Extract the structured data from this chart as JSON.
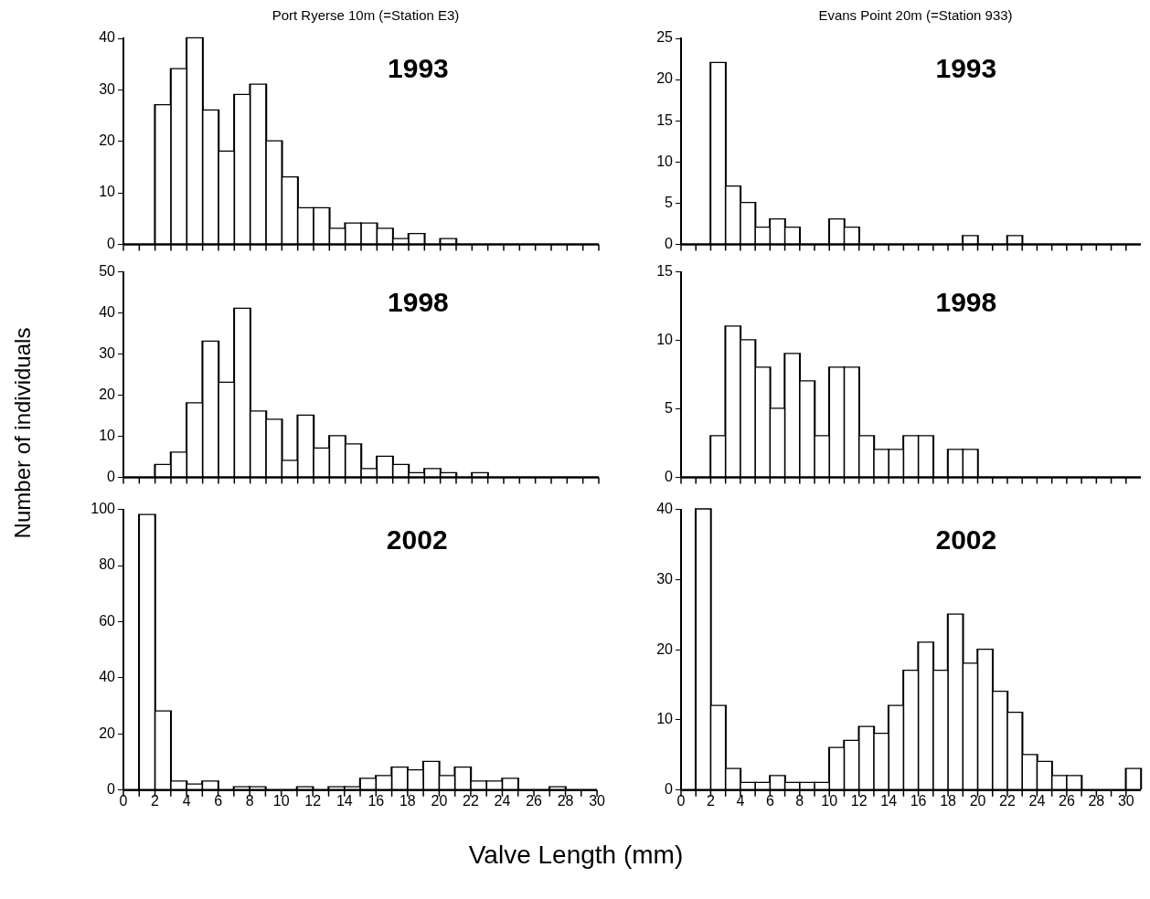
{
  "chart_data": [
    {
      "type": "histogram",
      "title": "Port Ryerse 10m (=Station E3)",
      "annotations": [
        "1993"
      ],
      "color": "#ffffff",
      "tick_labels": "y",
      "grid": false,
      "legend": false,
      "bins": [
        0,
        1,
        2,
        3,
        4,
        5,
        6,
        7,
        8,
        9,
        10,
        11,
        12,
        13,
        14,
        15,
        16,
        17,
        18,
        19,
        20,
        21,
        22,
        23,
        24,
        25,
        26,
        27,
        28,
        29,
        30
      ],
      "values": [
        0,
        0,
        27,
        34,
        40,
        26,
        18,
        29,
        31,
        20,
        13,
        7,
        7,
        3,
        4,
        4,
        3,
        1,
        2,
        0,
        1,
        0,
        0,
        0,
        0,
        0,
        0,
        0,
        0,
        0
      ],
      "xlim": [
        0,
        30
      ],
      "xticks": [
        0,
        {
          "value": 1,
          "label": null
        },
        2,
        {
          "value": 3,
          "label": null
        },
        4,
        {
          "value": 5,
          "label": null
        },
        6,
        {
          "value": 7,
          "label": null
        },
        8,
        {
          "value": 9,
          "label": null
        },
        10,
        {
          "value": 11,
          "label": null
        },
        12,
        {
          "value": 13,
          "label": null
        },
        14,
        {
          "value": 15,
          "label": null
        },
        16,
        {
          "value": 17,
          "label": null
        },
        18,
        {
          "value": 19,
          "label": null
        },
        20,
        {
          "value": 21,
          "label": null
        },
        22,
        {
          "value": 23,
          "label": null
        },
        24,
        {
          "value": 25,
          "label": null
        },
        26,
        {
          "value": 27,
          "label": null
        },
        28,
        {
          "value": 29,
          "label": null
        },
        30
      ],
      "ylim": [
        0,
        40
      ],
      "yticks": [
        0,
        10,
        20,
        30,
        40
      ]
    },
    {
      "type": "histogram",
      "title": "Evans Point 20m (=Station 933)",
      "annotations": [
        "1993"
      ],
      "color": "#ffffff",
      "tick_labels": "y",
      "grid": false,
      "legend": false,
      "bins": [
        0,
        1,
        2,
        3,
        4,
        5,
        6,
        7,
        8,
        9,
        10,
        11,
        12,
        13,
        14,
        15,
        16,
        17,
        18,
        19,
        20,
        21,
        22,
        23,
        24,
        25,
        26,
        27,
        28,
        29,
        30,
        31
      ],
      "values": [
        0,
        0,
        22,
        7,
        5,
        2,
        3,
        2,
        0,
        0,
        3,
        2,
        0,
        0,
        0,
        0,
        0,
        0,
        0,
        1,
        0,
        0,
        1,
        0,
        0,
        0,
        0,
        0,
        0,
        0,
        0
      ],
      "xlim": [
        0,
        31
      ],
      "xticks": [
        0,
        {
          "value": 1,
          "label": null
        },
        2,
        {
          "value": 3,
          "label": null
        },
        4,
        {
          "value": 5,
          "label": null
        },
        6,
        {
          "value": 7,
          "label": null
        },
        8,
        {
          "value": 9,
          "label": null
        },
        10,
        {
          "value": 11,
          "label": null
        },
        12,
        {
          "value": 13,
          "label": null
        },
        14,
        {
          "value": 15,
          "label": null
        },
        16,
        {
          "value": 17,
          "label": null
        },
        18,
        {
          "value": 19,
          "label": null
        },
        20,
        {
          "value": 21,
          "label": null
        },
        22,
        {
          "value": 23,
          "label": null
        },
        24,
        {
          "value": 25,
          "label": null
        },
        26,
        {
          "value": 27,
          "label": null
        },
        28,
        {
          "value": 29,
          "label": null
        },
        30
      ],
      "ylim": [
        0,
        25
      ],
      "yticks": [
        0,
        5,
        10,
        15,
        20,
        25
      ]
    },
    {
      "type": "histogram",
      "ylabel": "Number of individuals",
      "annotations": [
        "1998"
      ],
      "color": "#ffffff",
      "tick_labels": "y",
      "grid": false,
      "legend": false,
      "bins": [
        0,
        1,
        2,
        3,
        4,
        5,
        6,
        7,
        8,
        9,
        10,
        11,
        12,
        13,
        14,
        15,
        16,
        17,
        18,
        19,
        20,
        21,
        22,
        23,
        24,
        25,
        26,
        27,
        28,
        29,
        30
      ],
      "values": [
        0,
        0,
        3,
        6,
        18,
        33,
        23,
        41,
        16,
        14,
        4,
        15,
        7,
        10,
        8,
        2,
        5,
        3,
        1,
        2,
        1,
        0,
        1,
        0,
        0,
        0,
        0,
        0,
        0,
        0
      ],
      "xlim": [
        0,
        30
      ],
      "xticks": [
        0,
        {
          "value": 1,
          "label": null
        },
        2,
        {
          "value": 3,
          "label": null
        },
        4,
        {
          "value": 5,
          "label": null
        },
        6,
        {
          "value": 7,
          "label": null
        },
        8,
        {
          "value": 9,
          "label": null
        },
        10,
        {
          "value": 11,
          "label": null
        },
        12,
        {
          "value": 13,
          "label": null
        },
        14,
        {
          "value": 15,
          "label": null
        },
        16,
        {
          "value": 17,
          "label": null
        },
        18,
        {
          "value": 19,
          "label": null
        },
        20,
        {
          "value": 21,
          "label": null
        },
        22,
        {
          "value": 23,
          "label": null
        },
        24,
        {
          "value": 25,
          "label": null
        },
        26,
        {
          "value": 27,
          "label": null
        },
        28,
        {
          "value": 29,
          "label": null
        },
        30
      ],
      "ylim": [
        0,
        50
      ],
      "yticks": [
        0,
        10,
        20,
        30,
        40,
        50
      ]
    },
    {
      "type": "histogram",
      "annotations": [
        "1998"
      ],
      "color": "#ffffff",
      "tick_labels": "y",
      "grid": false,
      "legend": false,
      "bins": [
        0,
        1,
        2,
        3,
        4,
        5,
        6,
        7,
        8,
        9,
        10,
        11,
        12,
        13,
        14,
        15,
        16,
        17,
        18,
        19,
        20,
        21,
        22,
        23,
        24,
        25,
        26,
        27,
        28,
        29,
        30,
        31
      ],
      "values": [
        0,
        0,
        3,
        11,
        10,
        8,
        5,
        9,
        7,
        3,
        8,
        8,
        3,
        2,
        2,
        3,
        3,
        0,
        2,
        2,
        0,
        0,
        0,
        0,
        0,
        0,
        0,
        0,
        0,
        0,
        0
      ],
      "xlim": [
        0,
        31
      ],
      "xticks": [
        0,
        {
          "value": 1,
          "label": null
        },
        2,
        {
          "value": 3,
          "label": null
        },
        4,
        {
          "value": 5,
          "label": null
        },
        6,
        {
          "value": 7,
          "label": null
        },
        8,
        {
          "value": 9,
          "label": null
        },
        10,
        {
          "value": 11,
          "label": null
        },
        12,
        {
          "value": 13,
          "label": null
        },
        14,
        {
          "value": 15,
          "label": null
        },
        16,
        {
          "value": 17,
          "label": null
        },
        18,
        {
          "value": 19,
          "label": null
        },
        20,
        {
          "value": 21,
          "label": null
        },
        22,
        {
          "value": 23,
          "label": null
        },
        24,
        {
          "value": 25,
          "label": null
        },
        26,
        {
          "value": 27,
          "label": null
        },
        28,
        {
          "value": 29,
          "label": null
        },
        30
      ],
      "ylim": [
        0,
        15
      ],
      "yticks": [
        0,
        5,
        10,
        15
      ]
    },
    {
      "type": "histogram",
      "xlabel": "Valve Length (mm)",
      "annotations": [
        "2002"
      ],
      "color": "#ffffff",
      "grid": false,
      "legend": false,
      "bins": [
        0,
        1,
        2,
        3,
        4,
        5,
        6,
        7,
        8,
        9,
        10,
        11,
        12,
        13,
        14,
        15,
        16,
        17,
        18,
        19,
        20,
        21,
        22,
        23,
        24,
        25,
        26,
        27,
        28,
        29,
        30
      ],
      "values": [
        0,
        98,
        28,
        3,
        2,
        3,
        0,
        1,
        1,
        0,
        0,
        1,
        0,
        1,
        1,
        4,
        5,
        8,
        7,
        10,
        5,
        8,
        3,
        3,
        4,
        0,
        0,
        1,
        0,
        0
      ],
      "xlim": [
        0,
        30
      ],
      "xticks": [
        0,
        {
          "value": 1,
          "label": null
        },
        2,
        {
          "value": 3,
          "label": null
        },
        4,
        {
          "value": 5,
          "label": null
        },
        6,
        {
          "value": 7,
          "label": null
        },
        8,
        {
          "value": 9,
          "label": null
        },
        10,
        {
          "value": 11,
          "label": null
        },
        12,
        {
          "value": 13,
          "label": null
        },
        14,
        {
          "value": 15,
          "label": null
        },
        16,
        {
          "value": 17,
          "label": null
        },
        18,
        {
          "value": 19,
          "label": null
        },
        20,
        {
          "value": 21,
          "label": null
        },
        22,
        {
          "value": 23,
          "label": null
        },
        24,
        {
          "value": 25,
          "label": null
        },
        26,
        {
          "value": 27,
          "label": null
        },
        28,
        {
          "value": 29,
          "label": null
        },
        30
      ],
      "ylim": [
        0,
        100
      ],
      "yticks": [
        0,
        20,
        40,
        60,
        80,
        100
      ]
    },
    {
      "type": "histogram",
      "annotations": [
        "2002"
      ],
      "color": "#ffffff",
      "grid": false,
      "legend": false,
      "bins": [
        0,
        1,
        2,
        3,
        4,
        5,
        6,
        7,
        8,
        9,
        10,
        11,
        12,
        13,
        14,
        15,
        16,
        17,
        18,
        19,
        20,
        21,
        22,
        23,
        24,
        25,
        26,
        27,
        28,
        29,
        30,
        31
      ],
      "values": [
        0,
        40,
        12,
        3,
        1,
        1,
        2,
        1,
        1,
        1,
        6,
        7,
        9,
        8,
        12,
        17,
        21,
        17,
        25,
        18,
        20,
        14,
        11,
        5,
        4,
        2,
        2,
        0,
        0,
        0,
        3
      ],
      "xlim": [
        0,
        31
      ],
      "xticks": [
        0,
        {
          "value": 1,
          "label": null
        },
        2,
        {
          "value": 3,
          "label": null
        },
        4,
        {
          "value": 5,
          "label": null
        },
        6,
        {
          "value": 7,
          "label": null
        },
        8,
        {
          "value": 9,
          "label": null
        },
        10,
        {
          "value": 11,
          "label": null
        },
        12,
        {
          "value": 13,
          "label": null
        },
        14,
        {
          "value": 15,
          "label": null
        },
        16,
        {
          "value": 17,
          "label": null
        },
        18,
        {
          "value": 19,
          "label": null
        },
        20,
        {
          "value": 21,
          "label": null
        },
        22,
        {
          "value": 23,
          "label": null
        },
        24,
        {
          "value": 25,
          "label": null
        },
        26,
        {
          "value": 27,
          "label": null
        },
        28,
        {
          "value": 29,
          "label": null
        },
        30
      ],
      "ylim": [
        0,
        40
      ],
      "yticks": [
        0,
        10,
        20,
        30,
        40
      ]
    }
  ]
}
